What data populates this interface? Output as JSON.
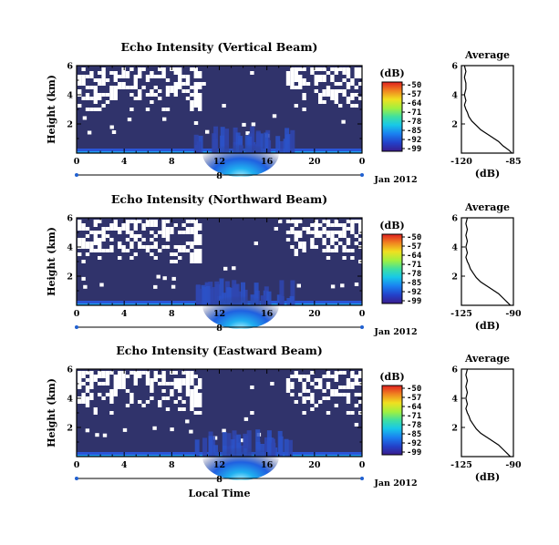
{
  "chart_data": [
    {
      "type": "heatmap",
      "title": "Echo Intensity (Vertical Beam)",
      "xlabel": "",
      "ylabel": "Height (km)",
      "x_ticks": [
        "0",
        "4",
        "8",
        "12",
        "16",
        "20",
        "0"
      ],
      "y_ticks": [
        "2",
        "4",
        "6"
      ],
      "day_label": "8",
      "date_label": "Jan 2012",
      "xlim": [
        0,
        24
      ],
      "ylim": [
        0,
        6
      ],
      "colorbar": {
        "unit": "(dB)",
        "ticks": [
          "-50",
          "-57",
          "-64",
          "-71",
          "-78",
          "-85",
          "-92",
          "-99"
        ]
      },
      "average": {
        "title": "Average",
        "xlabel": "(dB)",
        "x_ticks": [
          "-120",
          "-85"
        ],
        "y_ticks": [
          "2",
          "4",
          "6"
        ],
        "xlim": [
          -120,
          -85
        ],
        "height": [
          0.0,
          0.2,
          0.5,
          0.8,
          1.0,
          1.2,
          1.4,
          1.6,
          1.9,
          2.2,
          2.5,
          2.8,
          3.0,
          3.3,
          3.6,
          4.0,
          4.4,
          4.8,
          5.2,
          5.6,
          6.0
        ],
        "value": [
          -86,
          -88,
          -92,
          -95,
          -98,
          -101,
          -104,
          -107,
          -110,
          -113,
          -115,
          -116,
          -117,
          -118,
          -117,
          -118,
          -117,
          -117,
          -118,
          -117,
          -118
        ]
      }
    },
    {
      "type": "heatmap",
      "title": "Echo Intensity (Northward Beam)",
      "xlabel": "",
      "ylabel": "Height (km)",
      "x_ticks": [
        "0",
        "4",
        "8",
        "12",
        "16",
        "20",
        "0"
      ],
      "y_ticks": [
        "2",
        "4",
        "6"
      ],
      "day_label": "8",
      "date_label": "Jan 2012",
      "xlim": [
        0,
        24
      ],
      "ylim": [
        0,
        6
      ],
      "colorbar": {
        "unit": "(dB)",
        "ticks": [
          "-50",
          "-57",
          "-64",
          "-71",
          "-78",
          "-85",
          "-92",
          "-99"
        ]
      },
      "average": {
        "title": "Average",
        "xlabel": "(dB)",
        "x_ticks": [
          "-125",
          "-90"
        ],
        "y_ticks": [
          "2",
          "4",
          "6"
        ],
        "xlim": [
          -125,
          -90
        ],
        "height": [
          0.0,
          0.2,
          0.5,
          0.8,
          1.0,
          1.2,
          1.4,
          1.6,
          1.9,
          2.2,
          2.5,
          2.8,
          3.0,
          3.3,
          3.6,
          4.0,
          4.4,
          4.8,
          5.2,
          5.6,
          6.0
        ],
        "value": [
          -92,
          -94,
          -97,
          -100,
          -103,
          -106,
          -109,
          -112,
          -115,
          -117,
          -119,
          -120,
          -121,
          -122,
          -121,
          -122,
          -121,
          -122,
          -121,
          -122,
          -121
        ]
      }
    },
    {
      "type": "heatmap",
      "title": "Echo Intensity (Eastward Beam)",
      "xlabel": "Local Time",
      "ylabel": "Height (km)",
      "x_ticks": [
        "0",
        "4",
        "8",
        "12",
        "16",
        "20",
        "0"
      ],
      "y_ticks": [
        "2",
        "4",
        "6"
      ],
      "day_label": "8",
      "date_label": "Jan 2012",
      "xlim": [
        0,
        24
      ],
      "ylim": [
        0,
        6
      ],
      "colorbar": {
        "unit": "(dB)",
        "ticks": [
          "-50",
          "-57",
          "-64",
          "-71",
          "-78",
          "-85",
          "-92",
          "-99"
        ]
      },
      "average": {
        "title": "Average",
        "xlabel": "(dB)",
        "x_ticks": [
          "-125",
          "-90"
        ],
        "y_ticks": [
          "2",
          "4",
          "6"
        ],
        "xlim": [
          -125,
          -90
        ],
        "height": [
          0.0,
          0.2,
          0.5,
          0.8,
          1.0,
          1.2,
          1.4,
          1.6,
          1.9,
          2.2,
          2.5,
          2.8,
          3.0,
          3.3,
          3.6,
          4.0,
          4.4,
          4.8,
          5.2,
          5.6,
          6.0
        ],
        "value": [
          -92,
          -94,
          -97,
          -100,
          -103,
          -106,
          -109,
          -112,
          -115,
          -117,
          -119,
          -120,
          -121,
          -122,
          -121,
          -122,
          -121,
          -122,
          -121,
          -122,
          -121
        ]
      }
    }
  ],
  "colors": {
    "background_field": "#30336b",
    "colormap": [
      "#3a1c8c",
      "#2340c8",
      "#1a7ff0",
      "#18c8e8",
      "#40e0a0",
      "#a0f040",
      "#f0e020",
      "#f08020",
      "#e02020"
    ]
  }
}
